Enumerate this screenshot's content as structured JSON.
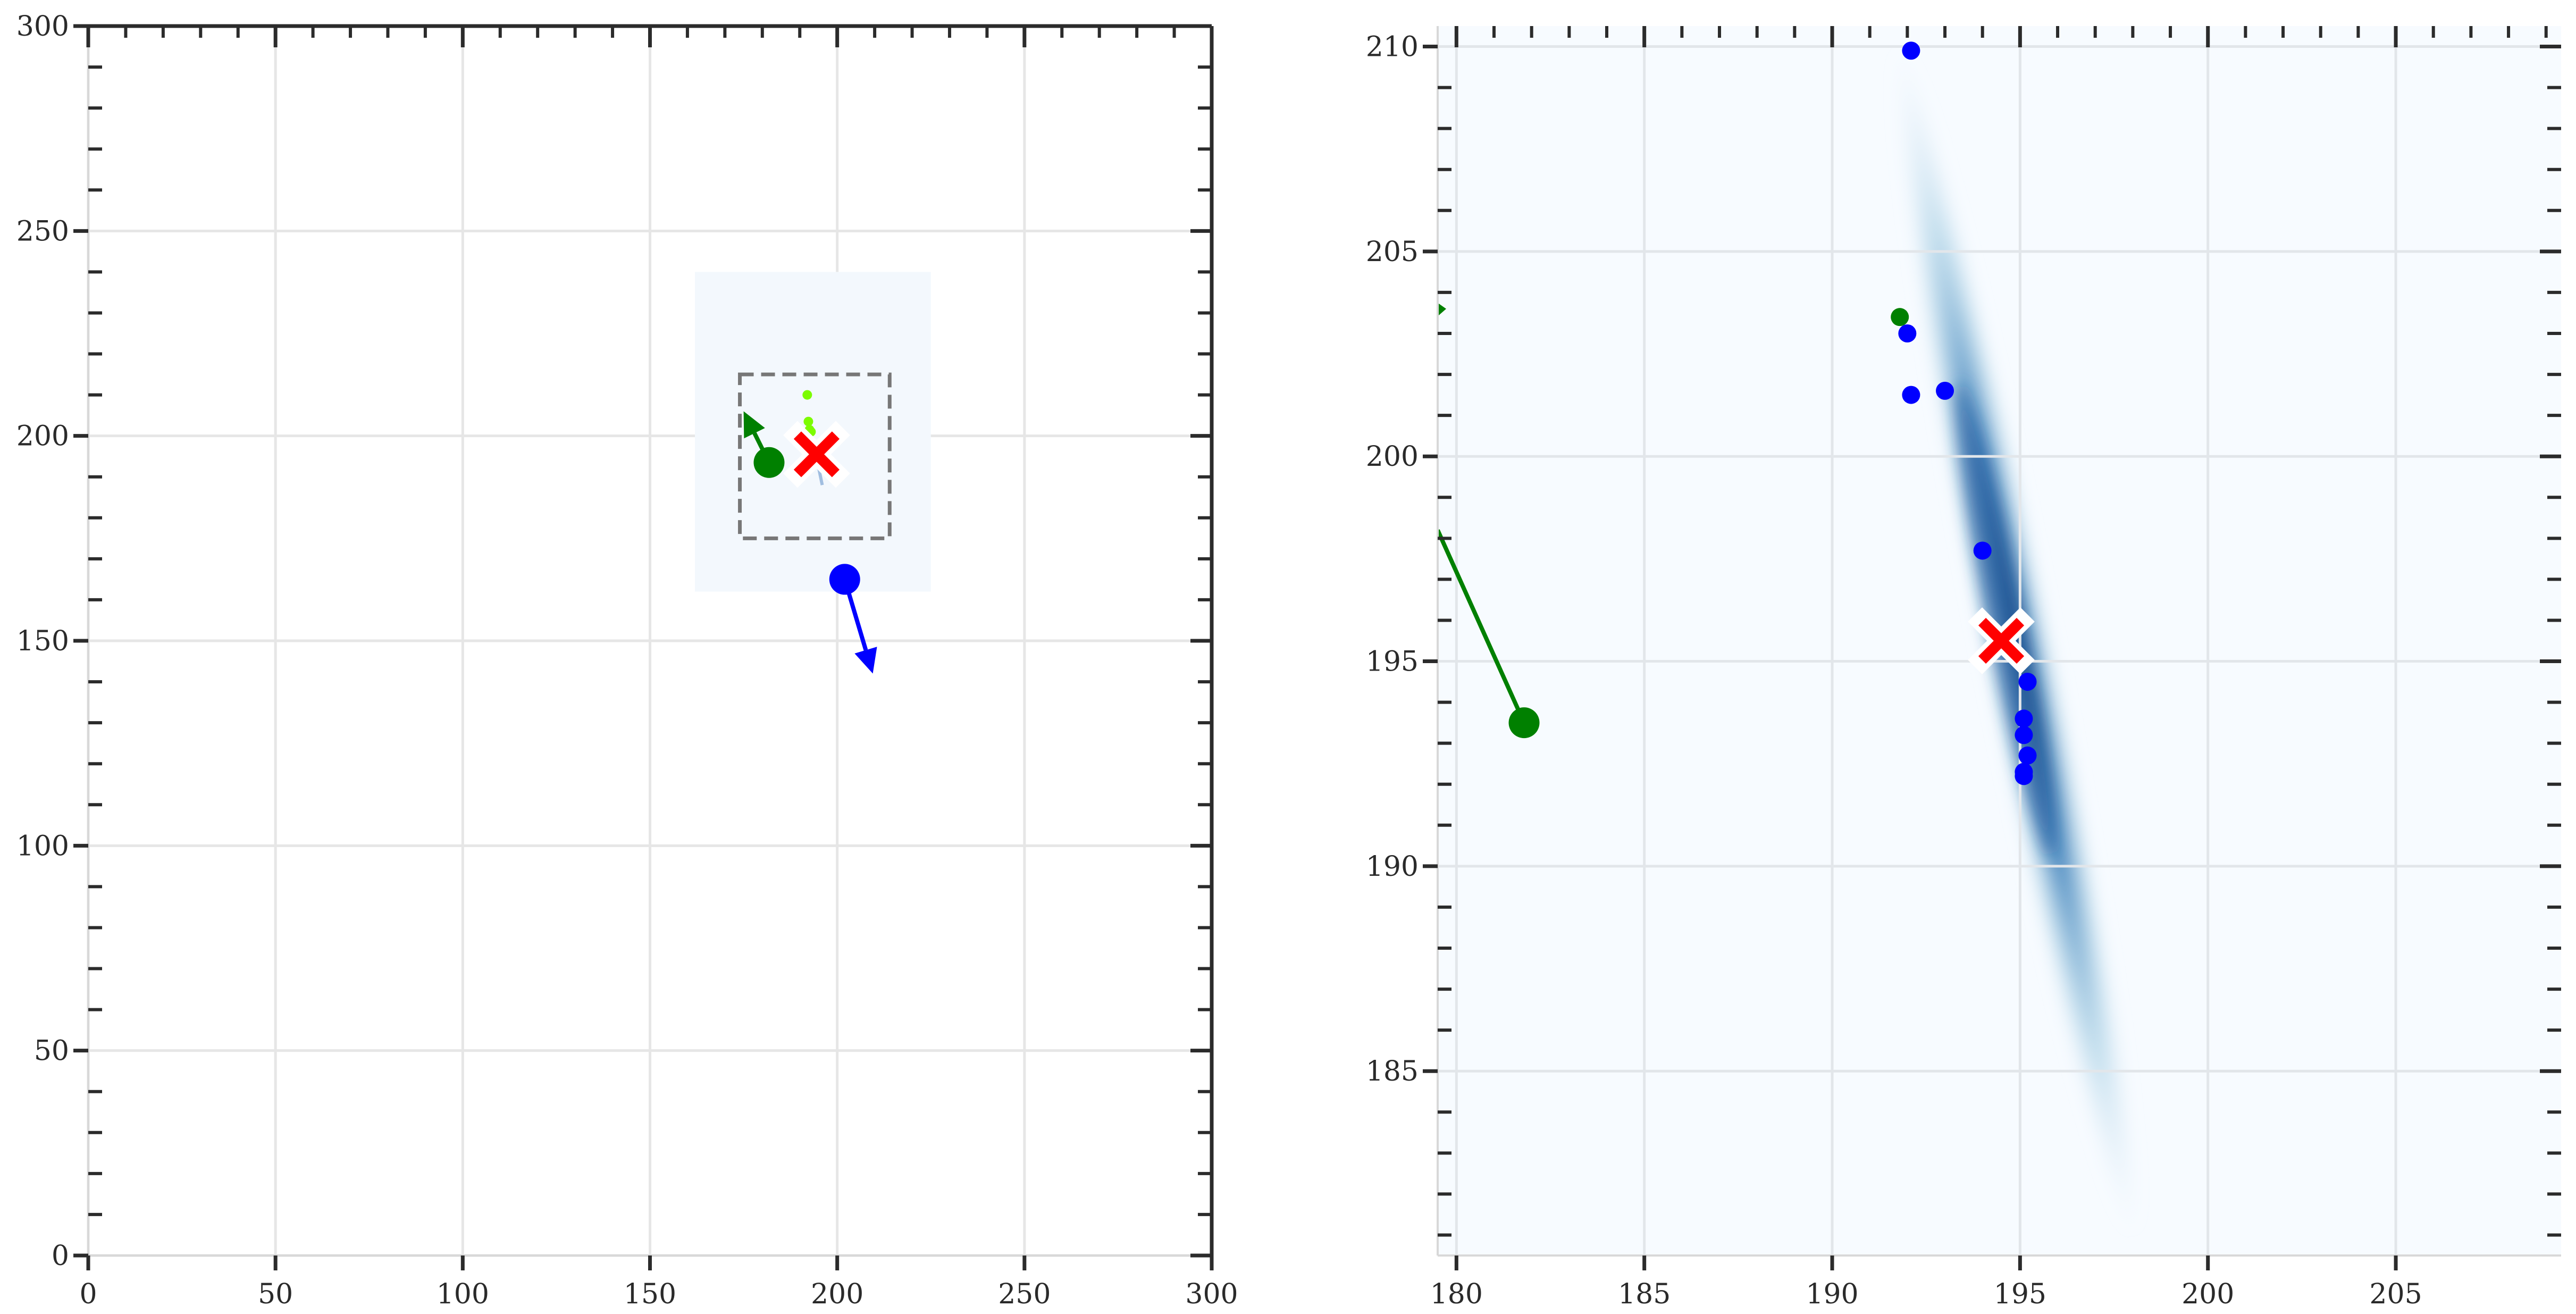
{
  "chart_data": [
    {
      "type": "scatter",
      "title": "",
      "xlabel": "",
      "ylabel": "",
      "xlim": [
        0,
        300
      ],
      "ylim": [
        0,
        300
      ],
      "grid": true,
      "x_ticks": [
        "0",
        "50",
        "100",
        "150",
        "200",
        "250",
        "300"
      ],
      "y_ticks": [
        "0",
        "50",
        "100",
        "150",
        "200",
        "250",
        "300"
      ],
      "density_region": {
        "x": [
          162,
          225
        ],
        "y": [
          162,
          240
        ]
      },
      "zoom_box": {
        "x": [
          174,
          214
        ],
        "y": [
          175,
          215
        ]
      },
      "agents": [
        {
          "color": "#008000",
          "x": 181.8,
          "y": 193.5,
          "arrow_to": [
            175,
            206
          ]
        },
        {
          "color": "#0000ff",
          "x": 202,
          "y": 165,
          "arrow_to": [
            209.5,
            142
          ]
        }
      ],
      "target_marker": {
        "x": 194.5,
        "y": 195.5,
        "color": "#ff0000"
      },
      "small_points": [
        {
          "x": 192,
          "y": 210,
          "color": "#7cfc00"
        },
        {
          "x": 192.3,
          "y": 203.5,
          "color": "#7cfc00"
        },
        {
          "x": 192.6,
          "y": 201.5,
          "color": "#7cfc00"
        },
        {
          "x": 193,
          "y": 201,
          "color": "#7cfc00"
        }
      ]
    },
    {
      "type": "scatter",
      "title": "",
      "xlabel": "",
      "ylabel": "",
      "xlim": [
        179.5,
        209.4
      ],
      "ylim": [
        180.5,
        210.5
      ],
      "grid": true,
      "x_ticks": [
        "180",
        "185",
        "190",
        "195",
        "200",
        "205"
      ],
      "y_ticks": [
        "185",
        "190",
        "195",
        "200",
        "205",
        "210"
      ],
      "density": {
        "from": [
          191.8,
          210.0
        ],
        "to": [
          198.0,
          181.0
        ],
        "peak": [
          194.6,
          196.0
        ]
      },
      "green_agent": {
        "x": 181.8,
        "y": 193.5,
        "color": "#008000",
        "line_from": [
          179.5,
          198.2
        ]
      },
      "green_points": [
        {
          "x": 191.8,
          "y": 203.4
        }
      ],
      "blue_points": [
        {
          "x": 192.1,
          "y": 209.9
        },
        {
          "x": 192.0,
          "y": 203.0
        },
        {
          "x": 192.1,
          "y": 201.5
        },
        {
          "x": 193.0,
          "y": 201.6
        },
        {
          "x": 194.0,
          "y": 197.7
        },
        {
          "x": 195.2,
          "y": 194.5
        },
        {
          "x": 195.1,
          "y": 193.6
        },
        {
          "x": 195.1,
          "y": 193.2
        },
        {
          "x": 195.2,
          "y": 192.7
        },
        {
          "x": 195.1,
          "y": 192.3
        },
        {
          "x": 195.1,
          "y": 192.2
        }
      ],
      "target_marker": {
        "x": 194.5,
        "y": 195.5,
        "color": "#ff0000"
      }
    }
  ]
}
